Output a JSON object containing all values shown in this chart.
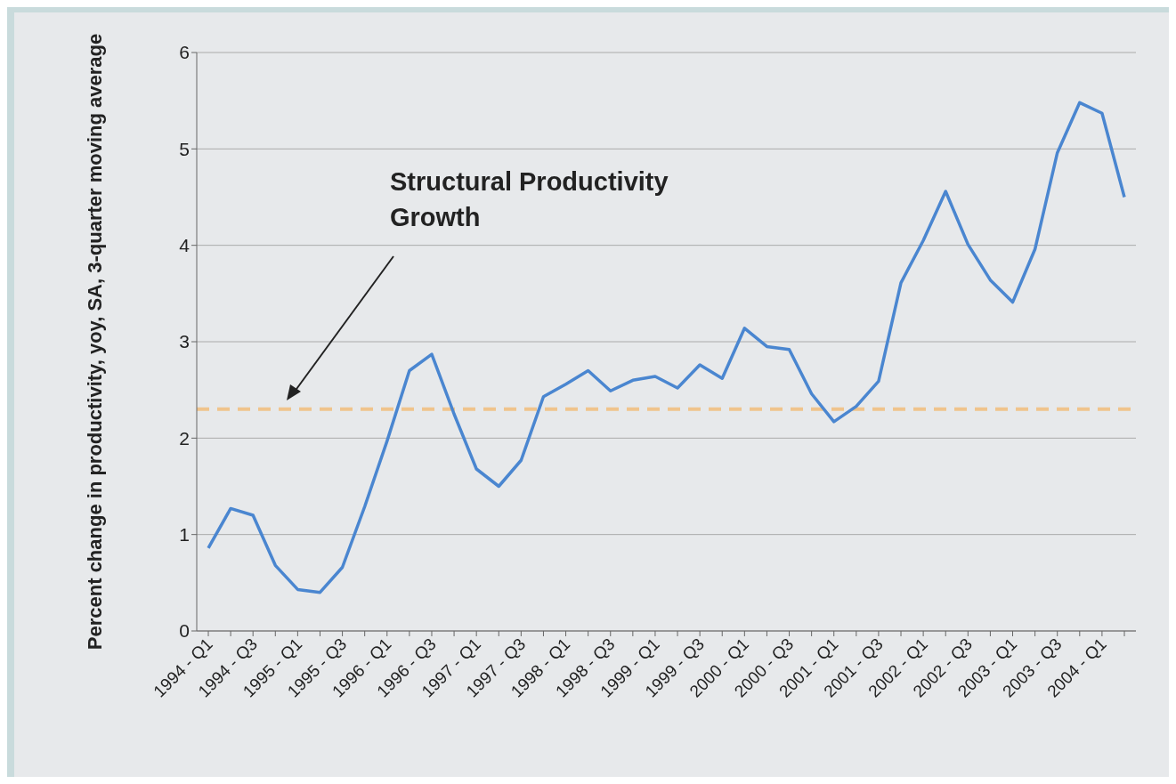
{
  "chart_data": {
    "type": "line",
    "ylabel": "Percent change in productivity, yoy, SA, 3-quarter moving average",
    "categories": [
      "1994 - Q1",
      null,
      "1994 - Q3",
      null,
      "1995 - Q1",
      null,
      "1995 - Q3",
      null,
      "1996 - Q1",
      null,
      "1996 - Q3",
      null,
      "1997 - Q1",
      null,
      "1997 - Q3",
      null,
      "1998 - Q1",
      null,
      "1998 - Q3",
      null,
      "1999 - Q1",
      null,
      "1999 - Q3",
      null,
      "2000 - Q1",
      null,
      "2000 - Q3",
      null,
      "2001 - Q1",
      null,
      "2001 - Q3",
      null,
      "2002 - Q1",
      null,
      "2002 - Q3",
      null,
      "2003 - Q1",
      null,
      "2003 - Q3",
      null,
      "2004 - Q1",
      null
    ],
    "series": [
      {
        "color": "#4a86d0",
        "values": [
          0.86,
          1.27,
          1.2,
          0.68,
          0.43,
          0.4,
          0.66,
          1.29,
          1.97,
          2.7,
          2.87,
          2.25,
          1.68,
          1.5,
          1.77,
          2.43,
          2.56,
          2.7,
          2.49,
          2.6,
          2.64,
          2.52,
          2.76,
          2.62,
          3.14,
          2.95,
          2.92,
          2.46,
          2.17,
          2.33,
          2.59,
          3.61,
          4.05,
          4.56,
          4.01,
          3.64,
          3.41,
          3.96,
          4.96,
          5.48,
          5.37,
          4.5
        ]
      }
    ],
    "ylim": [
      0,
      6
    ],
    "yticks": [
      0,
      1,
      2,
      3,
      4,
      5,
      6
    ],
    "grid": "y",
    "legend": false,
    "marker": "none",
    "line_style": "solid",
    "ref_lines": [
      {
        "axis": "y",
        "value": 2.3,
        "color": "#f0c48c",
        "line_style": "dashed"
      }
    ],
    "annotations": [
      "Structural Productivity Growth"
    ]
  }
}
